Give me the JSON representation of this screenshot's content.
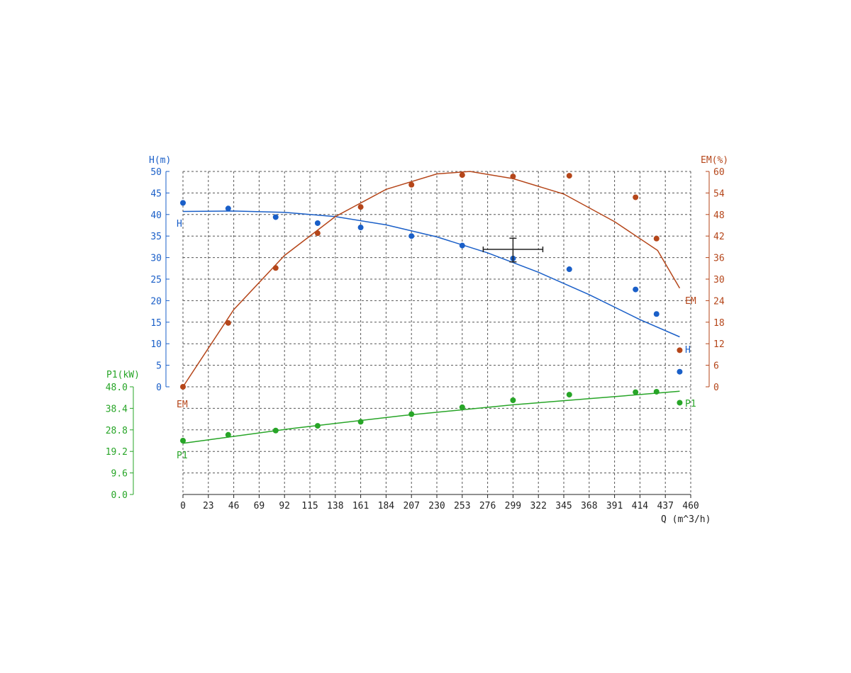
{
  "chart_data": {
    "type": "scatter",
    "grid": true,
    "x_axis": {
      "label": "Q (m^3/h)",
      "range": [
        0,
        460
      ],
      "ticks": [
        "0",
        "23",
        "46",
        "69",
        "92",
        "115",
        "138",
        "161",
        "184",
        "207",
        "230",
        "253",
        "276",
        "299",
        "322",
        "345",
        "368",
        "391",
        "414",
        "437",
        "460"
      ]
    },
    "y_axes": [
      {
        "id": "H",
        "label": "H(m)",
        "color": "#1a5fc8",
        "side": "left",
        "range": [
          0,
          50
        ],
        "ticks": [
          "0",
          "5",
          "10",
          "15",
          "20",
          "25",
          "30",
          "35",
          "40",
          "45",
          "50"
        ]
      },
      {
        "id": "EM",
        "label": "EM(%)",
        "color": "#b5461a",
        "side": "right",
        "range": [
          0,
          60
        ],
        "ticks": [
          "0",
          "6",
          "12",
          "18",
          "24",
          "30",
          "36",
          "42",
          "48",
          "54",
          "60"
        ]
      },
      {
        "id": "P1",
        "label": "P1(kW)",
        "color": "#27a527",
        "side": "left-lower",
        "range": [
          0,
          48
        ],
        "ticks": [
          "0.0",
          "9.6",
          "19.2",
          "28.8",
          "38.4",
          "48.0"
        ]
      }
    ],
    "series": [
      {
        "name": "H",
        "axis": "H",
        "color": "#1a5fc8",
        "points": [
          [
            0,
            42.7
          ],
          [
            41,
            41.4
          ],
          [
            84,
            39.4
          ],
          [
            122,
            38.0
          ],
          [
            161,
            37.0
          ],
          [
            207,
            35.0
          ],
          [
            253,
            32.8
          ],
          [
            299,
            29.8
          ],
          [
            350,
            27.3
          ],
          [
            410,
            22.6
          ],
          [
            429,
            16.9
          ],
          [
            450,
            3.5
          ]
        ],
        "curve": [
          [
            0,
            40.7
          ],
          [
            46,
            40.8
          ],
          [
            92,
            40.5
          ],
          [
            138,
            39.5
          ],
          [
            184,
            37.6
          ],
          [
            230,
            34.8
          ],
          [
            276,
            31.1
          ],
          [
            322,
            26.6
          ],
          [
            368,
            21.4
          ],
          [
            414,
            15.6
          ],
          [
            450,
            11.6
          ]
        ]
      },
      {
        "name": "EM",
        "axis": "EM",
        "color": "#b5461a",
        "points": [
          [
            0,
            0
          ],
          [
            41,
            17.8
          ],
          [
            84,
            33.1
          ],
          [
            122,
            42.8
          ],
          [
            161,
            50.1
          ],
          [
            207,
            56.3
          ],
          [
            253,
            59.0
          ],
          [
            299,
            58.6
          ],
          [
            350,
            58.8
          ],
          [
            410,
            52.8
          ],
          [
            429,
            41.3
          ],
          [
            450,
            10.2
          ]
        ],
        "curve": [
          [
            0,
            0
          ],
          [
            46,
            21.5
          ],
          [
            92,
            36.6
          ],
          [
            138,
            47.4
          ],
          [
            184,
            55.0
          ],
          [
            230,
            59.3
          ],
          [
            260,
            60.0
          ],
          [
            299,
            58.0
          ],
          [
            345,
            53.7
          ],
          [
            391,
            46.0
          ],
          [
            430,
            38.0
          ],
          [
            450,
            27.5
          ]
        ]
      },
      {
        "name": "P1",
        "axis": "P1",
        "color": "#27a527",
        "points": [
          [
            0,
            24.0
          ],
          [
            41,
            26.6
          ],
          [
            84,
            28.5
          ],
          [
            122,
            30.6
          ],
          [
            161,
            32.4
          ],
          [
            207,
            35.8
          ],
          [
            253,
            38.9
          ],
          [
            299,
            42.0
          ],
          [
            350,
            44.5
          ],
          [
            410,
            45.6
          ],
          [
            429,
            45.8
          ],
          [
            450,
            40.9
          ]
        ],
        "curve": [
          [
            0,
            22.8
          ],
          [
            100,
            29.5
          ],
          [
            200,
            35.2
          ],
          [
            300,
            40.0
          ],
          [
            400,
            44.0
          ],
          [
            450,
            46.0
          ]
        ]
      }
    ],
    "operating_point": {
      "x": 299,
      "y": 30.0,
      "x_err": [
        272,
        326
      ],
      "y_err": [
        29.0,
        34.5
      ],
      "color": "#222222"
    }
  }
}
